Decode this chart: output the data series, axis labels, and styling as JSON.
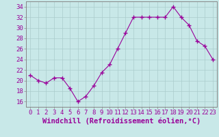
{
  "x": [
    0,
    1,
    2,
    3,
    4,
    5,
    6,
    7,
    8,
    9,
    10,
    11,
    12,
    13,
    14,
    15,
    16,
    17,
    18,
    19,
    20,
    21,
    22,
    23
  ],
  "y": [
    21,
    20,
    19.5,
    20.5,
    20.5,
    18.5,
    16,
    17,
    19,
    21.5,
    23,
    26,
    29,
    32,
    32,
    32,
    32,
    32,
    34,
    32,
    30.5,
    27.5,
    26.5,
    24
  ],
  "line_color": "#990099",
  "marker_color": "#990099",
  "bg_color": "#c8e8e8",
  "grid_color": "#aacccc",
  "xlabel": "Windchill (Refroidissement éolien,°C)",
  "ylim": [
    15,
    35
  ],
  "xlim": [
    -0.5,
    23.5
  ],
  "yticks": [
    16,
    18,
    20,
    22,
    24,
    26,
    28,
    30,
    32,
    34
  ],
  "xticks": [
    0,
    1,
    2,
    3,
    4,
    5,
    6,
    7,
    8,
    9,
    10,
    11,
    12,
    13,
    14,
    15,
    16,
    17,
    18,
    19,
    20,
    21,
    22,
    23
  ],
  "tick_color": "#990099",
  "spine_color": "#888888",
  "tick_fontsize": 6.5,
  "label_fontsize": 7.5
}
